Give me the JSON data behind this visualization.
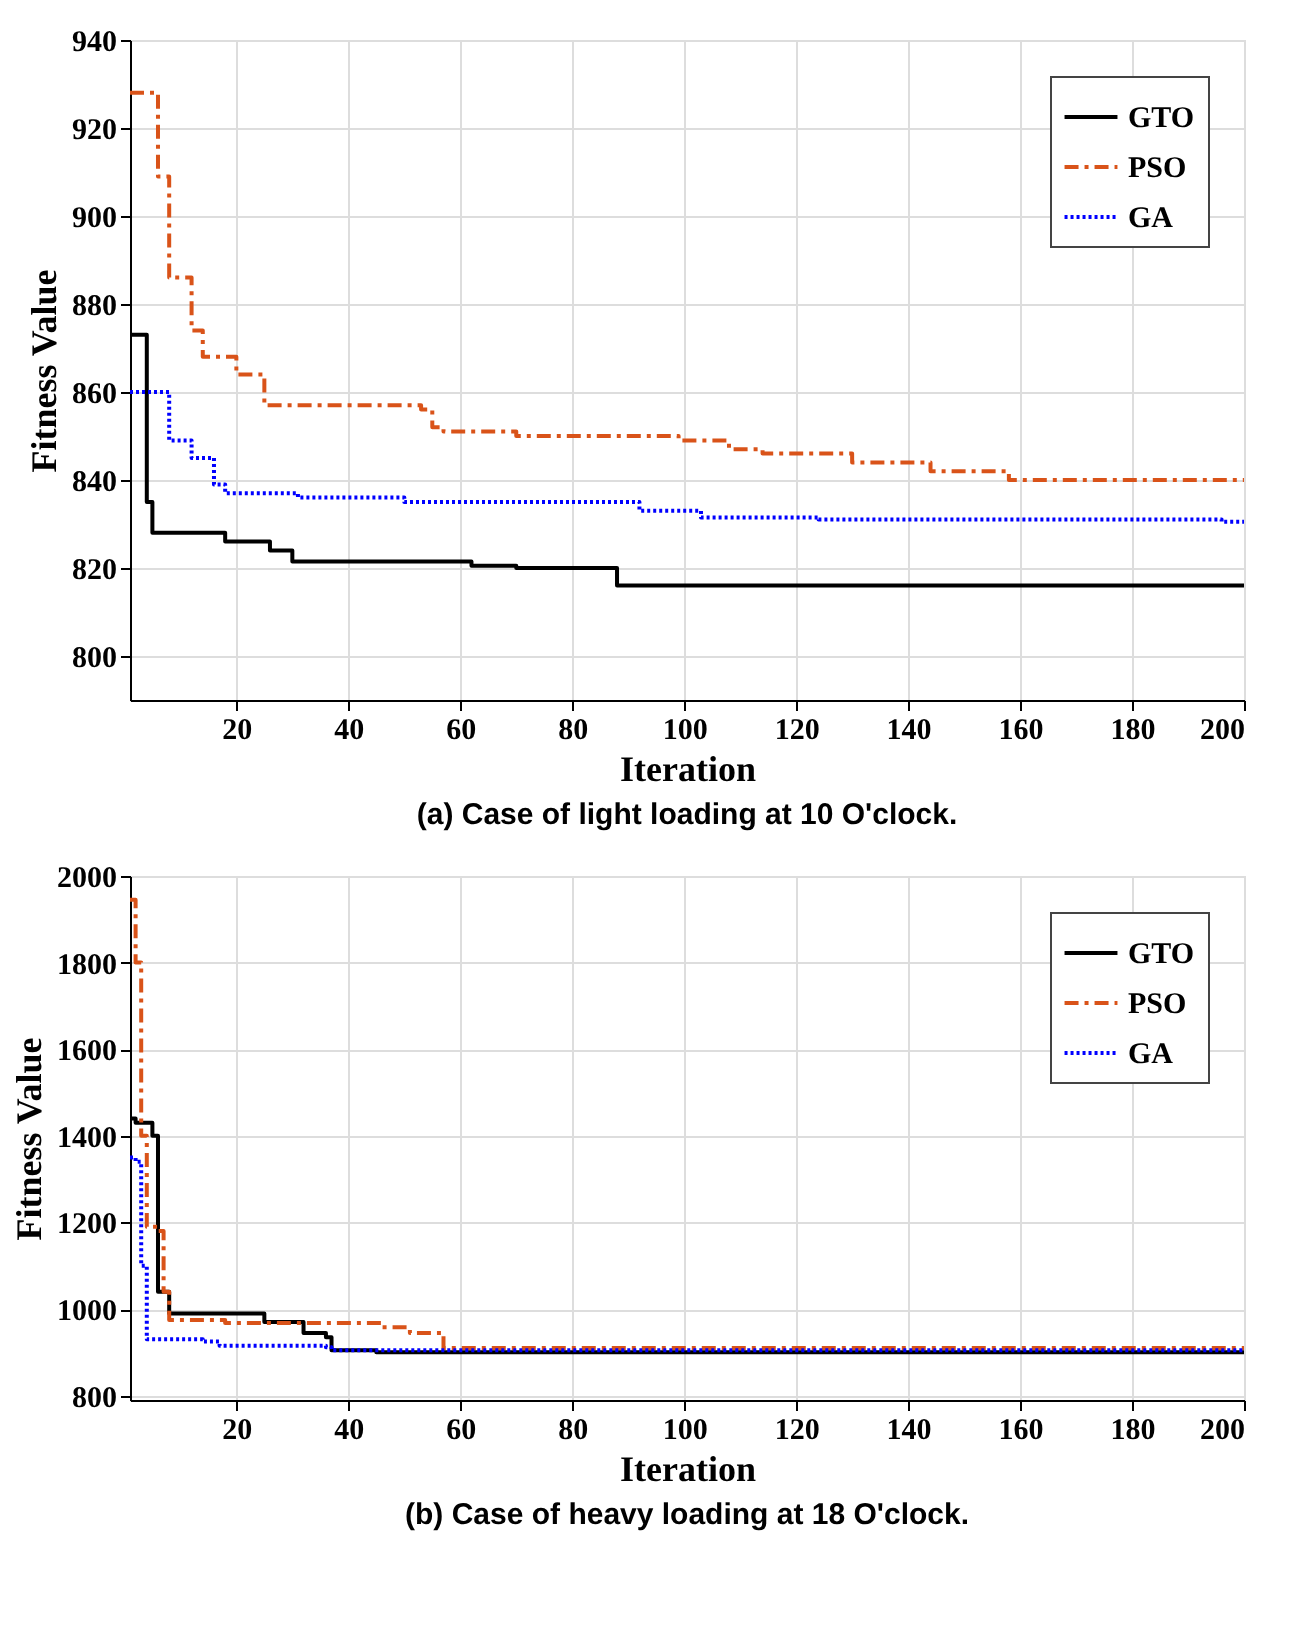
{
  "chart_data": [
    {
      "type": "step",
      "title": "(a) Case of light loading at 10 O'clock.",
      "xlabel": "Iteration",
      "ylabel": "Fitness Value",
      "xlim": [
        1,
        200
      ],
      "ylim": [
        790,
        940
      ],
      "xticks": [
        20,
        40,
        60,
        80,
        100,
        120,
        140,
        160,
        180,
        200
      ],
      "yticks": [
        800,
        820,
        840,
        860,
        880,
        900,
        920,
        940
      ],
      "grid": true,
      "legend": "top right",
      "series": [
        {
          "name": "GTO",
          "color": "#000000",
          "line_style": "solid",
          "x": [
            1,
            4,
            5,
            18,
            26,
            30,
            62,
            70,
            88,
            200
          ],
          "values": [
            873,
            835,
            828,
            826,
            824,
            821.5,
            820.5,
            820,
            816,
            816
          ]
        },
        {
          "name": "PSO",
          "color": "#d95319",
          "line_style": "dashed",
          "x": [
            1,
            6,
            8,
            12,
            14,
            20,
            25,
            53,
            55,
            57,
            70,
            99,
            108,
            114,
            130,
            144,
            158,
            200
          ],
          "values": [
            928,
            909,
            886,
            874,
            868,
            864,
            857,
            856,
            852,
            851,
            850,
            849,
            847,
            846,
            844,
            842,
            840,
            840
          ]
        },
        {
          "name": "GA",
          "color": "#0000ff",
          "line_style": "dotted",
          "x": [
            1,
            8,
            12,
            16,
            18,
            31,
            50,
            92,
            103,
            124,
            196,
            200
          ],
          "values": [
            860,
            849,
            845,
            839,
            837,
            836,
            835,
            833,
            831.5,
            831,
            830.5,
            830.5
          ]
        }
      ]
    },
    {
      "type": "step",
      "title": "(b) Case of heavy loading at 18 O'clock.",
      "xlabel": "Iteration",
      "ylabel": "Fitness Value",
      "xlim": [
        1,
        200
      ],
      "ylim": [
        790,
        2000
      ],
      "xticks": [
        20,
        40,
        60,
        80,
        100,
        120,
        140,
        160,
        180,
        200
      ],
      "yticks": [
        800,
        1000,
        1200,
        1400,
        1600,
        1800,
        2000
      ],
      "grid": true,
      "legend": "top right",
      "series": [
        {
          "name": "GTO",
          "color": "#000000",
          "line_style": "solid",
          "x": [
            1,
            2,
            4,
            5,
            6,
            8,
            17,
            25,
            32,
            36,
            37,
            45,
            200
          ],
          "values": [
            1440,
            1430,
            1430,
            1400,
            1040,
            990,
            990,
            970,
            945,
            935,
            905,
            900,
            900
          ]
        },
        {
          "name": "PSO",
          "color": "#d95319",
          "line_style": "dashed",
          "x": [
            1,
            2,
            3,
            4,
            6,
            7,
            8,
            18,
            46,
            51,
            57,
            200
          ],
          "values": [
            1945,
            1800,
            1400,
            1190,
            1180,
            1040,
            975,
            968,
            958,
            945,
            910,
            910
          ]
        },
        {
          "name": "GA",
          "color": "#0000ff",
          "line_style": "dotted",
          "x": [
            1,
            2,
            3,
            4,
            14,
            17,
            36,
            37,
            200
          ],
          "values": [
            1350,
            1340,
            1100,
            930,
            925,
            915,
            912,
            905,
            905
          ]
        }
      ]
    }
  ]
}
